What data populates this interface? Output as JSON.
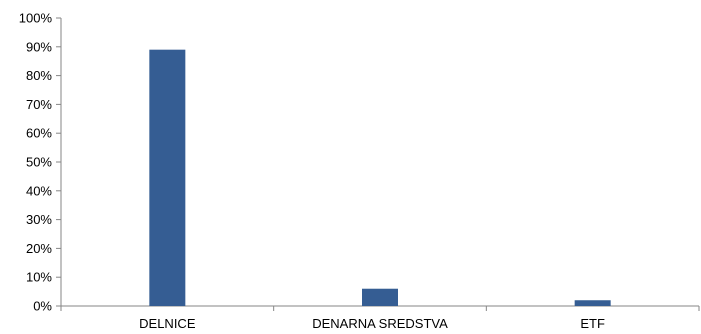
{
  "chart_data": {
    "type": "bar",
    "title": "",
    "xlabel": "",
    "ylabel": "",
    "categories": [
      "DELNICE",
      "DENARNA SREDSTVA",
      "ETF"
    ],
    "values": [
      0.89,
      0.06,
      0.02
    ],
    "ylim": [
      0,
      1
    ],
    "yticks": [
      0,
      0.1,
      0.2,
      0.3,
      0.4,
      0.5,
      0.6,
      0.7,
      0.8,
      0.9,
      1.0
    ],
    "ytick_labels": [
      "0%",
      "10%",
      "20%",
      "30%",
      "40%",
      "50%",
      "60%",
      "70%",
      "80%",
      "90%",
      "100%"
    ],
    "grid": false,
    "legend": "none",
    "bar_color": "#355D93"
  }
}
